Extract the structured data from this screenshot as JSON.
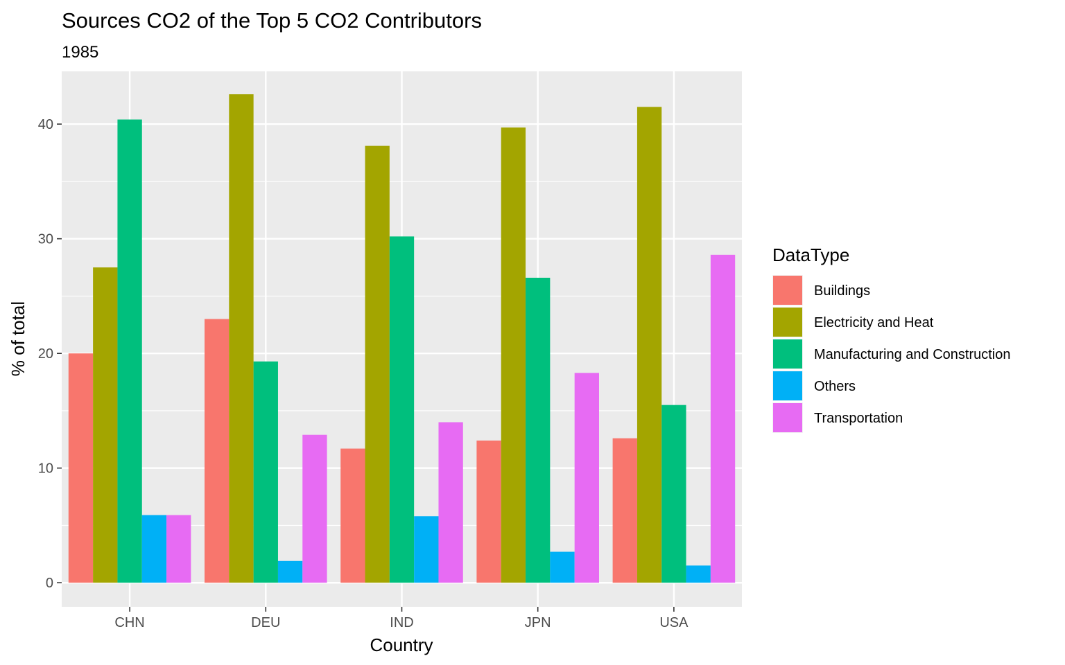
{
  "chart_data": {
    "type": "bar",
    "title": "Sources CO2 of the Top 5 CO2 Contributors",
    "subtitle": "1985",
    "xlabel": "Country",
    "ylabel": "% of total",
    "categories": [
      "CHN",
      "DEU",
      "IND",
      "JPN",
      "USA"
    ],
    "ylim": [
      -2.1,
      44.6
    ],
    "yticks": [
      0,
      10,
      20,
      30,
      40
    ],
    "grid": true,
    "legend": {
      "title": "DataType",
      "position": "right"
    },
    "series": [
      {
        "name": "Buildings",
        "color": "#F8766D",
        "values": [
          20.0,
          23.0,
          11.7,
          12.4,
          12.6
        ]
      },
      {
        "name": "Electricity and Heat",
        "color": "#A3A500",
        "values": [
          27.5,
          42.6,
          38.1,
          39.7,
          41.5
        ]
      },
      {
        "name": "Manufacturing and Construction",
        "color": "#00BF7D",
        "values": [
          40.4,
          19.3,
          30.2,
          26.6,
          15.5
        ]
      },
      {
        "name": "Others",
        "color": "#00B0F6",
        "values": [
          5.9,
          1.9,
          5.8,
          2.7,
          1.5
        ]
      },
      {
        "name": "Transportation",
        "color": "#E76BF3",
        "values": [
          5.9,
          12.9,
          14.0,
          18.3,
          28.6
        ]
      }
    ]
  }
}
